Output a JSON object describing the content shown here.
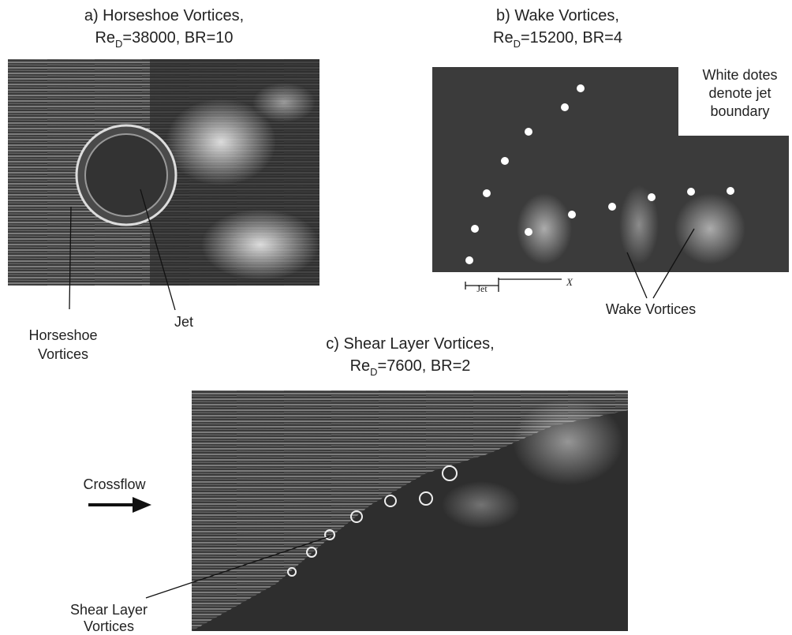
{
  "panels": [
    {
      "title": "a) Horseshoe Vortices,",
      "re": "Re",
      "sub": "D",
      "params": "=38000, BR=10",
      "labels": [
        {
          "lines": [
            "Horseshoe",
            "Vortices"
          ]
        },
        {
          "lines": [
            "Jet"
          ]
        }
      ]
    },
    {
      "title": "b) Wake Vortices,",
      "re": "Re",
      "sub": "D",
      "params": "=15200, BR=4",
      "note": [
        "White dotes",
        "denote jet",
        "boundary"
      ],
      "labels": [
        {
          "lines": [
            "Wake Vortices"
          ]
        }
      ],
      "scale": {
        "jet": "Jet",
        "x": "X"
      }
    },
    {
      "title": "c) Shear Layer Vortices,",
      "re": "Re",
      "sub": "D",
      "params": "=7600, BR=2",
      "labels": [
        {
          "lines": [
            "Crossflow"
          ]
        },
        {
          "lines": [
            "Shear Layer",
            "Vortices"
          ]
        }
      ]
    }
  ]
}
